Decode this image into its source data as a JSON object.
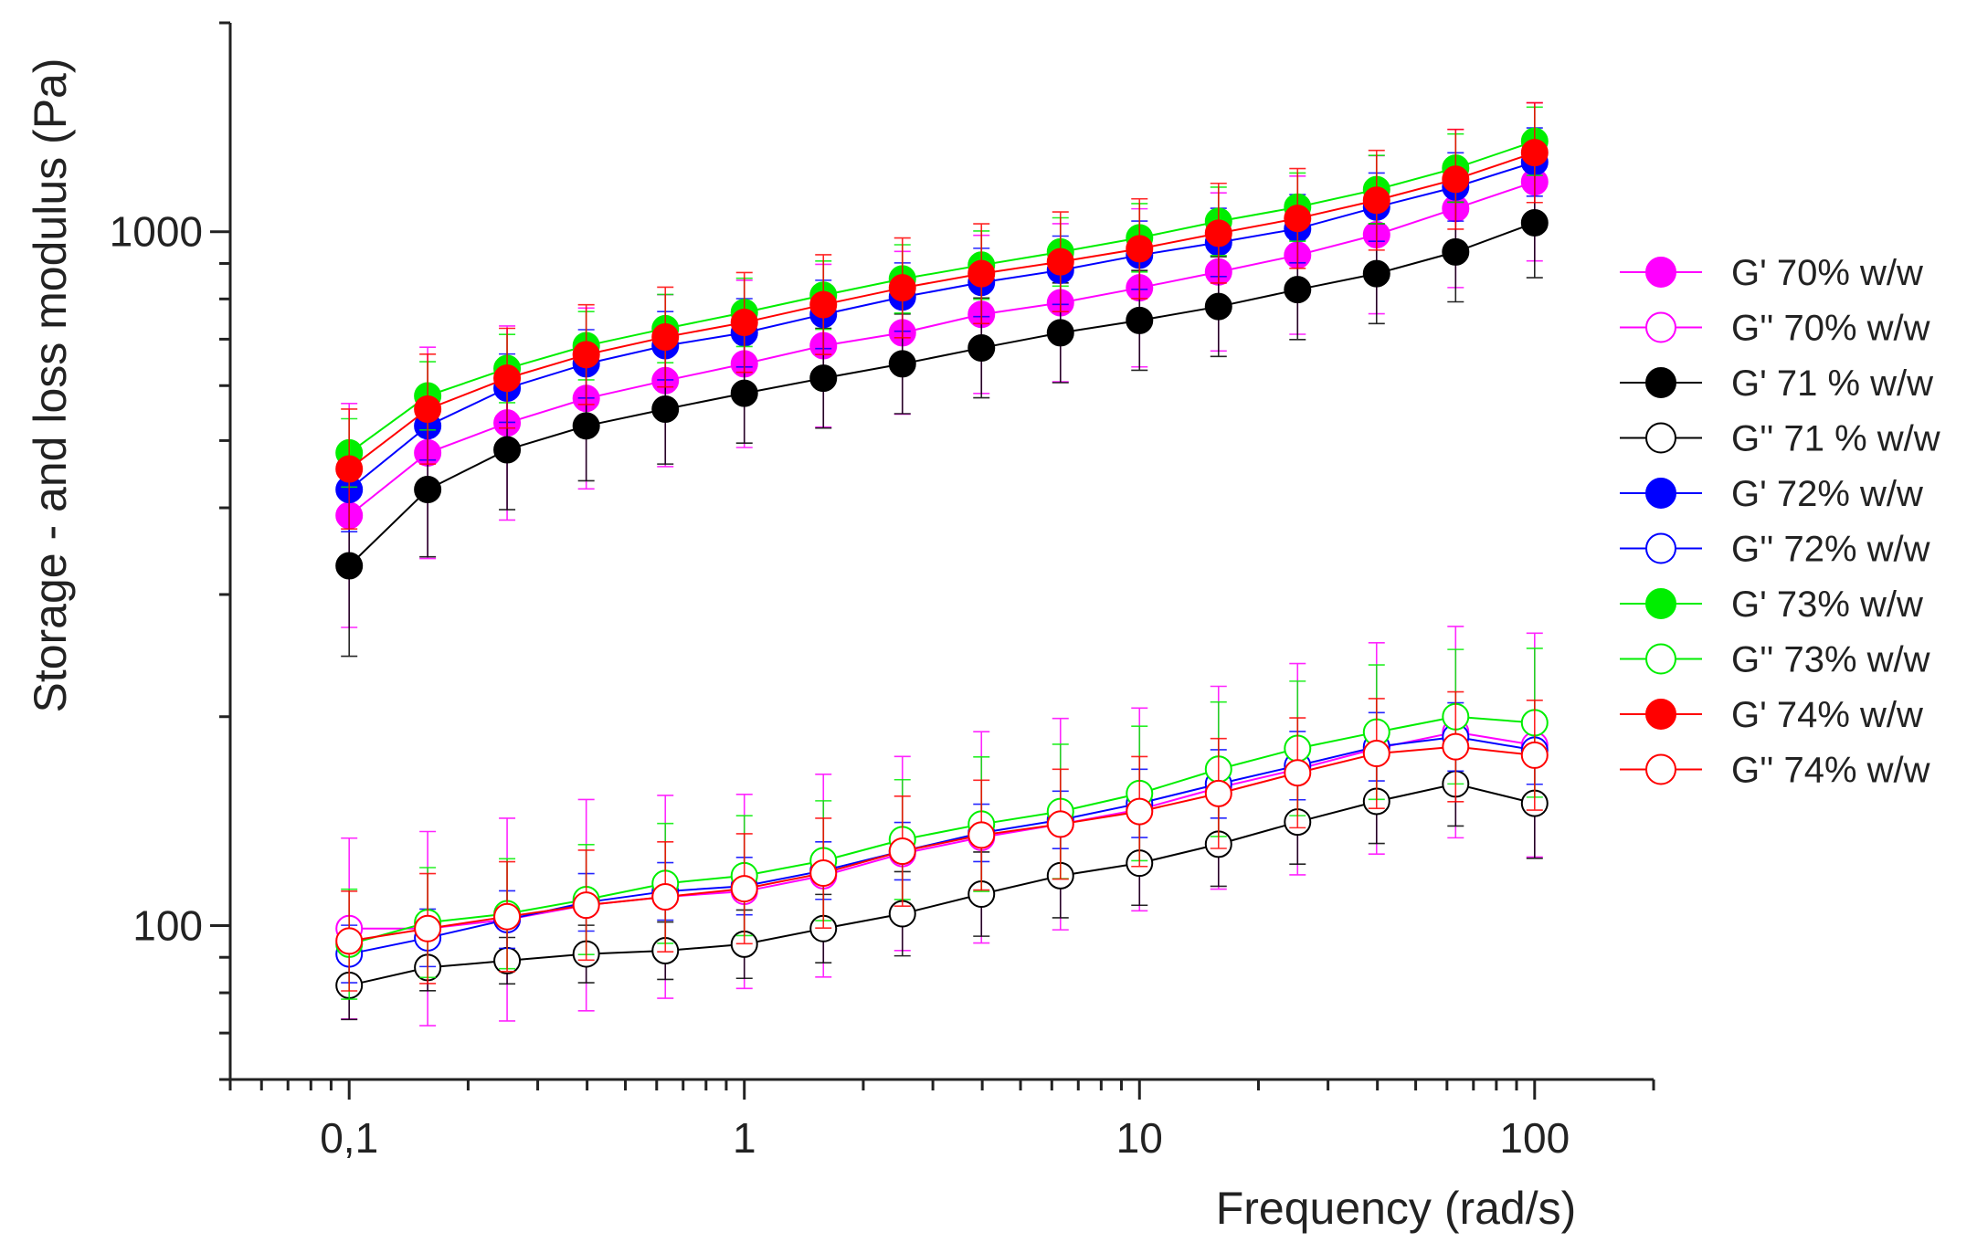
{
  "chart_data": {
    "type": "scatter",
    "title": "",
    "xlabel": "Frequency (rad/s)",
    "ylabel": "Storage - and loss modulus (Pa)",
    "xscale": "log",
    "yscale": "log",
    "xlim": [
      0.05,
      200
    ],
    "ylim": [
      60,
      2000
    ],
    "x_ticks": [
      0.1,
      1,
      10,
      100
    ],
    "x_tick_labels": [
      "0,1",
      "1",
      "10",
      "100"
    ],
    "y_ticks": [
      100,
      1000
    ],
    "y_tick_labels": [
      "100",
      "1000"
    ],
    "grid": false,
    "legend_position": "right",
    "x": [
      0.1,
      0.158,
      0.251,
      0.398,
      0.631,
      1,
      1.585,
      2.512,
      3.981,
      6.31,
      10,
      15.85,
      25.12,
      39.81,
      63.1,
      100
    ],
    "series": [
      {
        "name": "G' 70% w/w",
        "color": "#ff00ff",
        "filled": true,
        "values": [
          390,
          480,
          530,
          575,
          610,
          645,
          685,
          715,
          760,
          790,
          830,
          875,
          925,
          990,
          1080,
          1180
        ],
        "error": [
          0.45,
          0.42,
          0.38,
          0.35,
          0.33,
          0.32,
          0.31,
          0.31,
          0.3,
          0.3,
          0.3,
          0.3,
          0.3,
          0.3,
          0.3,
          0.3
        ]
      },
      {
        "name": "G'' 70% w/w",
        "color": "#ff00ff",
        "filled": false,
        "values": [
          99,
          99,
          102,
          107,
          110,
          112,
          118,
          127,
          134,
          140,
          147,
          158,
          168,
          180,
          190,
          182
        ],
        "error": [
          0.35,
          0.38,
          0.4,
          0.42,
          0.4,
          0.38,
          0.4,
          0.38,
          0.42,
          0.42,
          0.4,
          0.4,
          0.42,
          0.42,
          0.42,
          0.45
        ]
      },
      {
        "name": "G' 71 % w/w",
        "color": "#000000",
        "filled": true,
        "values": [
          330,
          425,
          485,
          525,
          555,
          585,
          615,
          645,
          680,
          715,
          745,
          780,
          825,
          870,
          935,
          1030
        ],
        "error": [
          0.35,
          0.25,
          0.22,
          0.2,
          0.2,
          0.18,
          0.18,
          0.18,
          0.18,
          0.18,
          0.18,
          0.18,
          0.18,
          0.18,
          0.18,
          0.2
        ]
      },
      {
        "name": "G'' 71 % w/w",
        "color": "#000000",
        "filled": false,
        "values": [
          82,
          87,
          89,
          91,
          92,
          94,
          99,
          104,
          111,
          118,
          123,
          131,
          141,
          151,
          160,
          150
        ],
        "error": [
          0.12,
          0.08,
          0.08,
          0.1,
          0.1,
          0.12,
          0.12,
          0.15,
          0.15,
          0.15,
          0.15,
          0.15,
          0.15,
          0.15,
          0.15,
          0.2
        ]
      },
      {
        "name": "G' 72% w/w",
        "color": "#0000ff",
        "filled": true,
        "values": [
          425,
          525,
          595,
          645,
          685,
          715,
          760,
          805,
          845,
          880,
          925,
          965,
          1010,
          1085,
          1160,
          1260
        ],
        "error": [
          0.15,
          0.12,
          0.12,
          0.12,
          0.12,
          0.12,
          0.12,
          0.12,
          0.12,
          0.12,
          0.12,
          0.12,
          0.12,
          0.12,
          0.12,
          0.12
        ]
      },
      {
        "name": "G'' 72% w/w",
        "color": "#0000ff",
        "filled": false,
        "values": [
          91,
          96,
          102,
          108,
          112,
          114,
          120,
          128,
          136,
          142,
          150,
          160,
          170,
          181,
          187,
          179
        ],
        "error": [
          0.1,
          0.1,
          0.1,
          0.1,
          0.1,
          0.1,
          0.1,
          0.1,
          0.1,
          0.1,
          0.12,
          0.12,
          0.12,
          0.12,
          0.12,
          0.12
        ]
      },
      {
        "name": "G' 73% w/w",
        "color": "#00ee00",
        "filled": true,
        "values": [
          480,
          580,
          635,
          685,
          725,
          765,
          810,
          855,
          895,
          935,
          980,
          1035,
          1085,
          1150,
          1235,
          1350
        ],
        "error": [
          0.12,
          0.12,
          0.12,
          0.12,
          0.12,
          0.12,
          0.12,
          0.12,
          0.12,
          0.12,
          0.12,
          0.12,
          0.12,
          0.12,
          0.12,
          0.12
        ]
      },
      {
        "name": "G'' 73% w/w",
        "color": "#00ee00",
        "filled": false,
        "values": [
          94,
          101,
          104,
          109,
          115,
          118,
          124,
          133,
          140,
          146,
          155,
          168,
          180,
          190,
          200,
          196
        ],
        "error": [
          0.2,
          0.2,
          0.2,
          0.2,
          0.22,
          0.22,
          0.22,
          0.22,
          0.25,
          0.25,
          0.25,
          0.25,
          0.25,
          0.25,
          0.25,
          0.28
        ]
      },
      {
        "name": "G' 74% w/w",
        "color": "#ff0000",
        "filled": true,
        "values": [
          455,
          555,
          615,
          665,
          705,
          740,
          785,
          830,
          870,
          905,
          945,
          995,
          1045,
          1110,
          1190,
          1300
        ],
        "error": [
          0.22,
          0.2,
          0.18,
          0.18,
          0.18,
          0.18,
          0.18,
          0.18,
          0.18,
          0.18,
          0.18,
          0.18,
          0.18,
          0.18,
          0.18,
          0.18
        ]
      },
      {
        "name": "G'' 74% w/w",
        "color": "#ff0000",
        "filled": false,
        "values": [
          95,
          99,
          103,
          107,
          110,
          113,
          119,
          128,
          135,
          140,
          146,
          155,
          166,
          177,
          181,
          176
        ],
        "error": [
          0.18,
          0.2,
          0.2,
          0.2,
          0.2,
          0.2,
          0.2,
          0.2,
          0.2,
          0.2,
          0.2,
          0.2,
          0.2,
          0.2,
          0.2,
          0.2
        ]
      }
    ]
  }
}
